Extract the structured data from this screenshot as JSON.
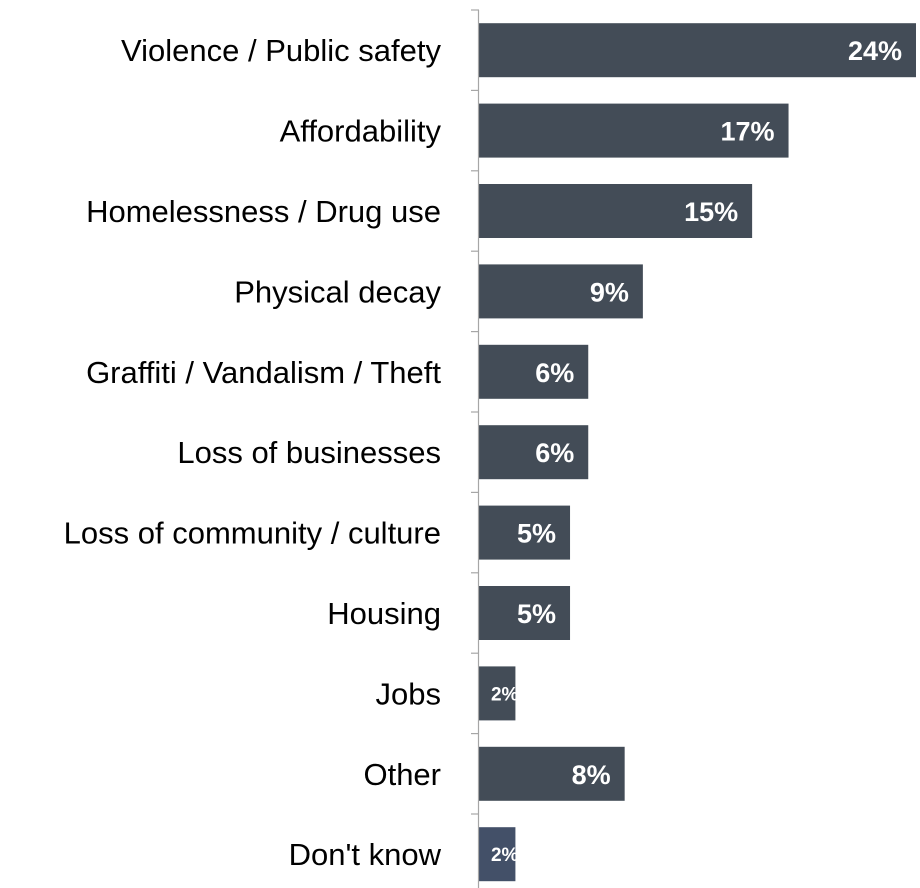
{
  "chart_data": {
    "type": "bar",
    "orientation": "horizontal",
    "categories": [
      "Violence / Public safety",
      "Affordability",
      "Homelessness / Drug use",
      "Physical decay",
      "Graffiti / Vandalism / Theft",
      "Loss of businesses",
      "Loss of community / culture",
      "Housing",
      "Jobs",
      "Other",
      "Don't know"
    ],
    "values": [
      24,
      17,
      15,
      9,
      6,
      6,
      5,
      5,
      2,
      8,
      2
    ],
    "value_labels": [
      "24%",
      "17%",
      "15%",
      "9%",
      "6%",
      "6%",
      "5%",
      "5%",
      "2%",
      "8%",
      "2%"
    ],
    "unit": "%",
    "xlim": [
      0,
      24
    ],
    "grid": false,
    "legend": "none",
    "bar_color": "#434c57",
    "highlight_bar_color": "#435068",
    "label_color": "#ffffff"
  }
}
